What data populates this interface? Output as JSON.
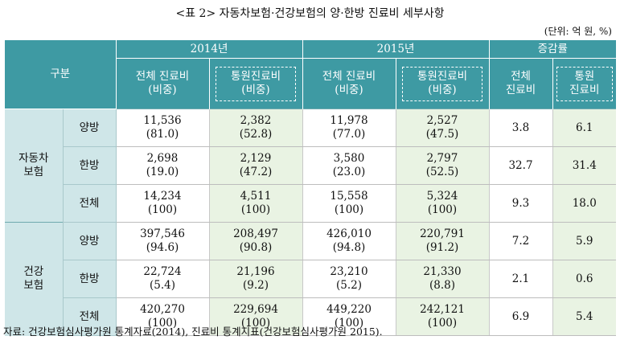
{
  "title": "<표 2> 자동차보험·건강보험의 양·한방 진료비 세부사항",
  "unit": "(단위: 억 원, %)",
  "header": {
    "category": "구분",
    "year1": "2014년",
    "year2": "2015년",
    "change": "증감률",
    "total_line1": "전체 진료비",
    "total_line2": "(비중)",
    "out_line1": "통원진료비",
    "out_line2": "(비중)",
    "chg_total_line1": "전체",
    "chg_total_line2": "진료비",
    "chg_out_line1": "통원",
    "chg_out_line2": "진료비"
  },
  "groups": [
    {
      "line1": "자동차",
      "line2": "보험",
      "rows": [
        {
          "label": "양방",
          "t14": "11,536",
          "t14p": "(81.0)",
          "o14": "2,382",
          "o14p": "(52.8)",
          "t15": "11,978",
          "t15p": "(77.0)",
          "o15": "2,527",
          "o15p": "(47.5)",
          "ct": "3.8",
          "co": "6.1"
        },
        {
          "label": "한방",
          "t14": "2,698",
          "t14p": "(19.0)",
          "o14": "2,129",
          "o14p": "(47.2)",
          "t15": "3,580",
          "t15p": "(23.0)",
          "o15": "2,797",
          "o15p": "(52.5)",
          "ct": "32.7",
          "co": "31.4"
        },
        {
          "label": "전체",
          "t14": "14,234",
          "t14p": "(100)",
          "o14": "4,511",
          "o14p": "(100)",
          "t15": "15,558",
          "t15p": "(100)",
          "o15": "5,324",
          "o15p": "(100)",
          "ct": "9.3",
          "co": "18.0"
        }
      ]
    },
    {
      "line1": "건강",
      "line2": "보험",
      "rows": [
        {
          "label": "양방",
          "t14": "397,546",
          "t14p": "(94.6)",
          "o14": "208,497",
          "o14p": "(90.8)",
          "t15": "426,010",
          "t15p": "(94.8)",
          "o15": "220,791",
          "o15p": "(91.2)",
          "ct": "7.2",
          "co": "5.9"
        },
        {
          "label": "한방",
          "t14": "22,724",
          "t14p": "(5.4)",
          "o14": "21,196",
          "o14p": "(9.2)",
          "t15": "23,210",
          "t15p": "(5.2)",
          "o15": "21,330",
          "o15p": "(8.8)",
          "ct": "2.1",
          "co": "0.6"
        },
        {
          "label": "전체",
          "t14": "420,270",
          "t14p": "(100)",
          "o14": "229,694",
          "o14p": "(100)",
          "t15": "449,220",
          "t15p": "(100)",
          "o15": "242,121",
          "o15p": "(100)",
          "ct": "6.9",
          "co": "5.4"
        }
      ]
    }
  ],
  "source": "자료: 건강보험심사평가원 통계자료(2014), 진료비 통계지표(건강보험심사평가원 2015)."
}
